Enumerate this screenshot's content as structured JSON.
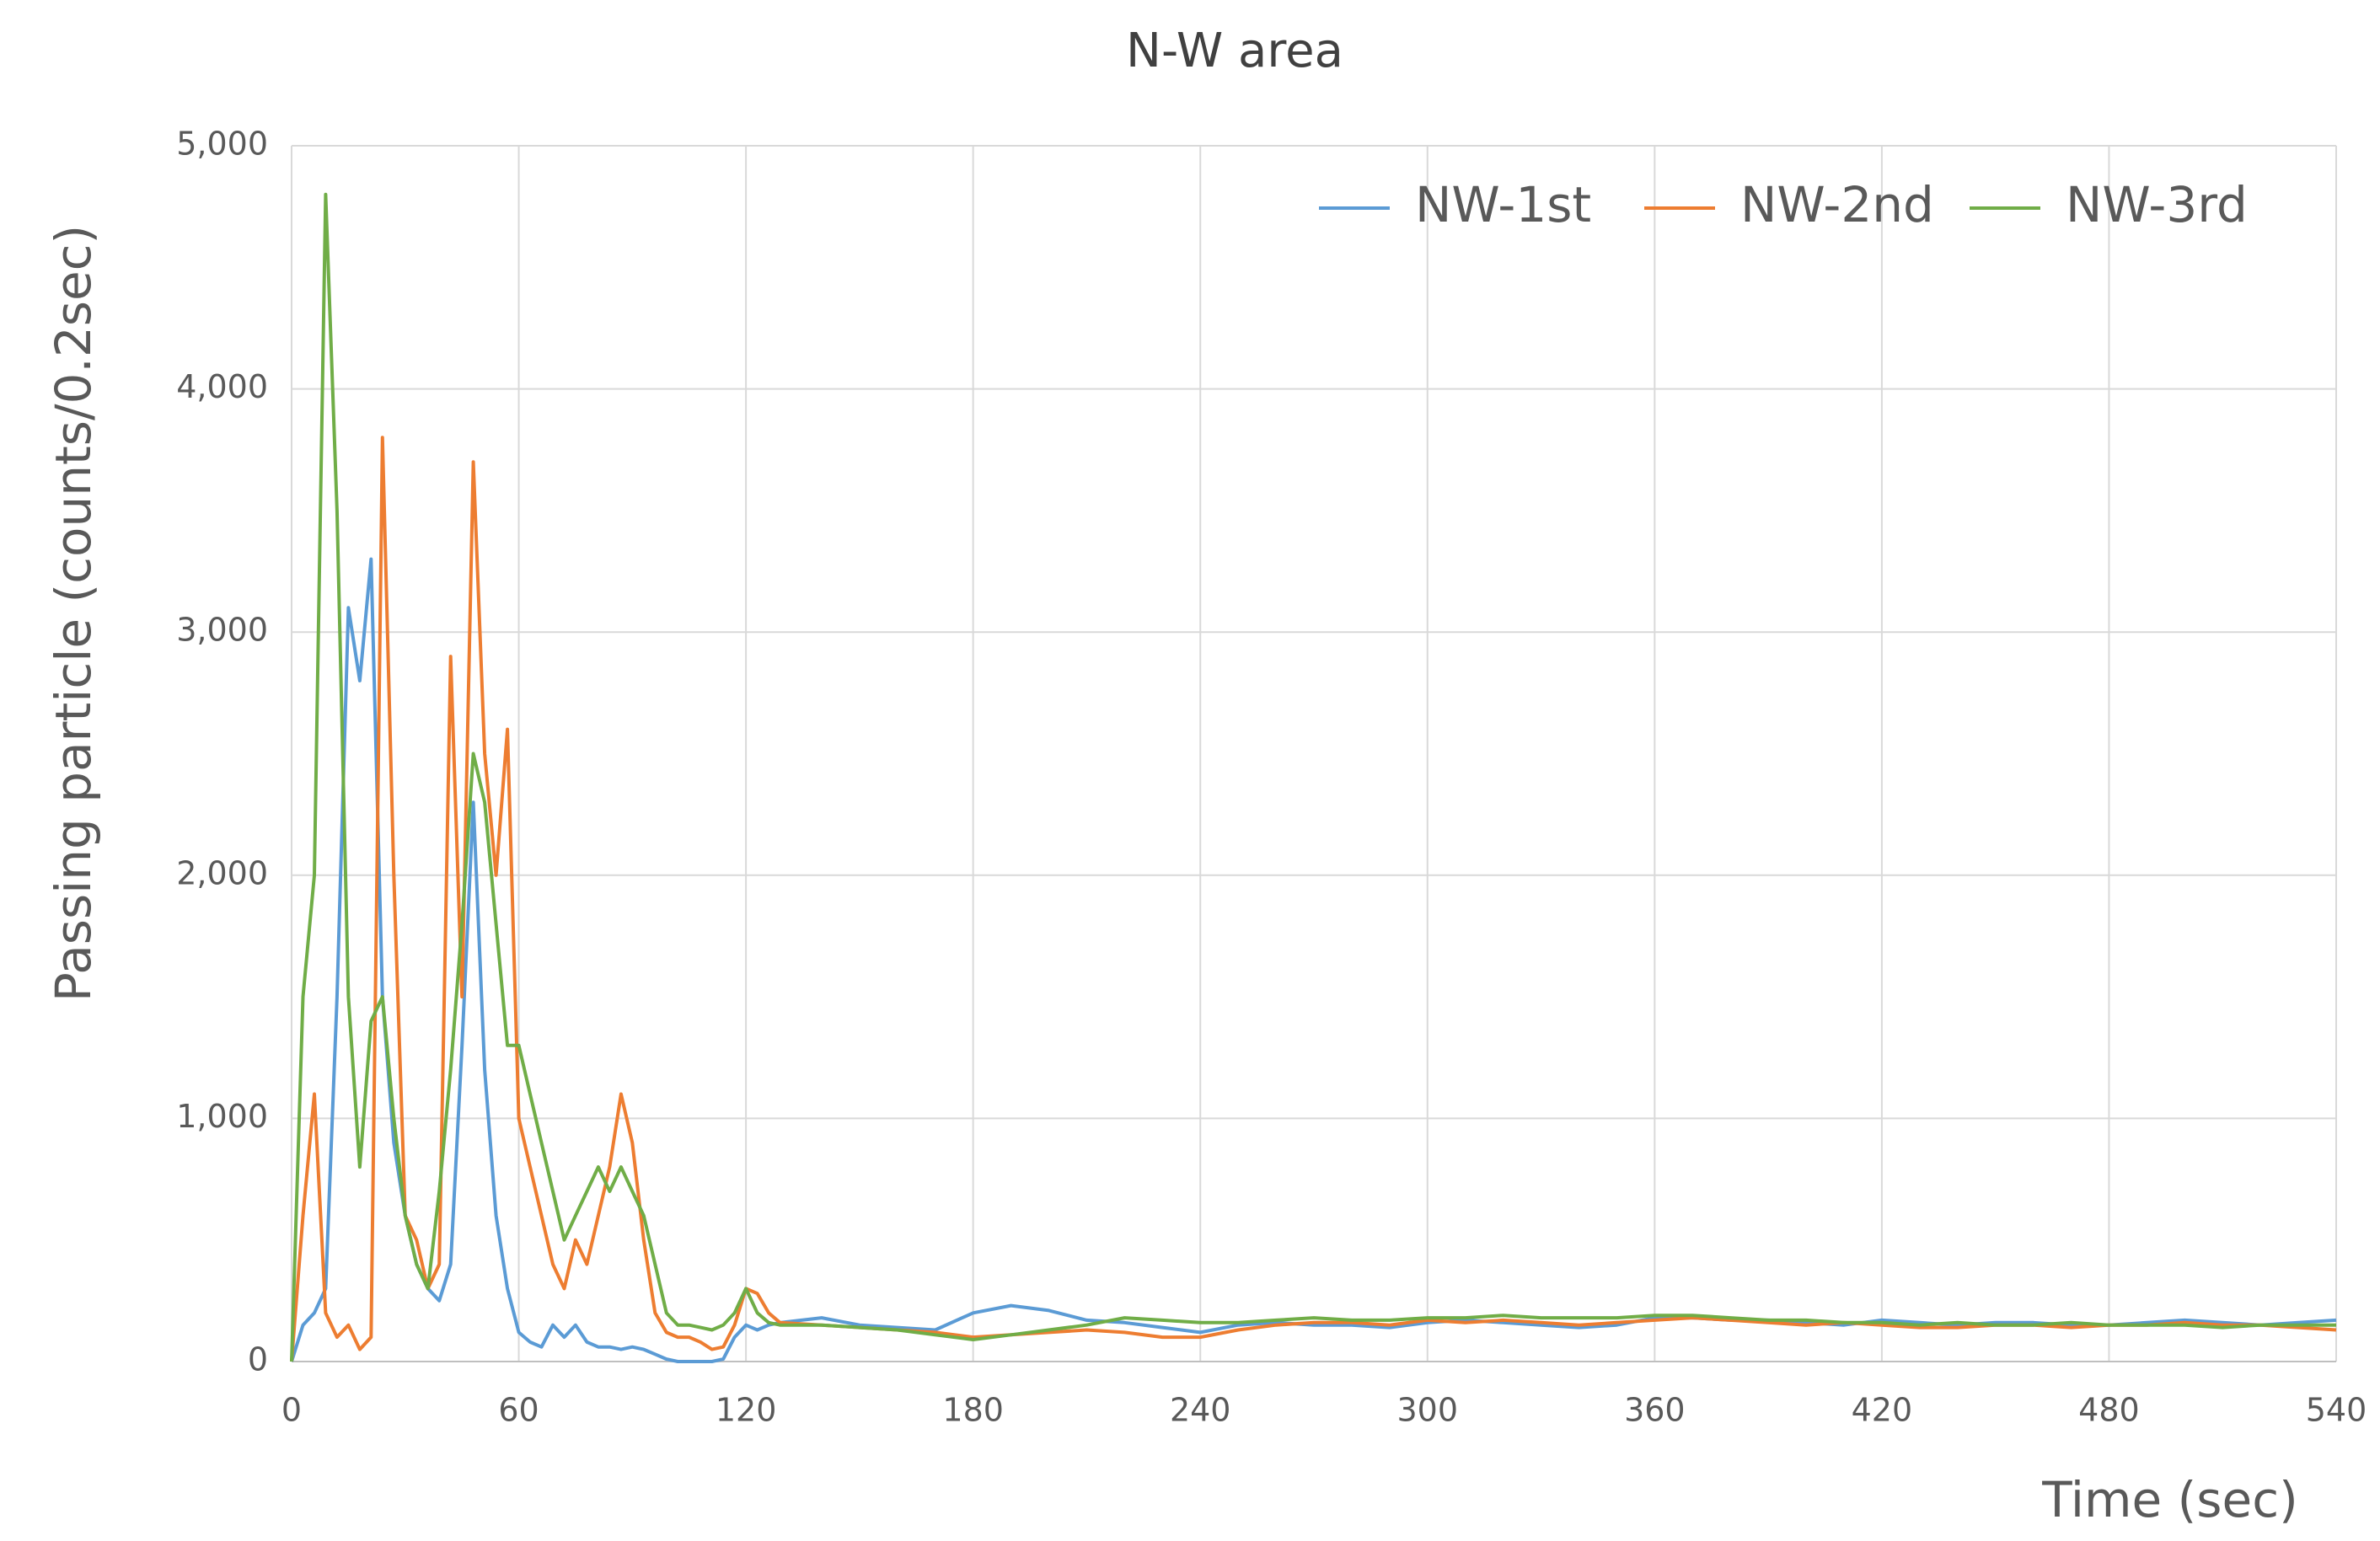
{
  "chart_data": {
    "type": "line",
    "title": "N-W area",
    "x_label": "Time (sec)",
    "y_label": "Passing particle (counts/0.2sec)",
    "x": [
      0,
      3,
      6,
      9,
      12,
      15,
      18,
      21,
      24,
      27,
      30,
      33,
      36,
      39,
      42,
      45,
      48,
      51,
      54,
      57,
      60,
      63,
      66,
      69,
      72,
      75,
      78,
      81,
      84,
      87,
      90,
      93,
      96,
      99,
      102,
      105,
      108,
      111,
      114,
      117,
      120,
      123,
      126,
      129,
      140,
      150,
      160,
      170,
      180,
      190,
      200,
      210,
      220,
      230,
      240,
      250,
      260,
      270,
      280,
      290,
      300,
      310,
      320,
      330,
      340,
      350,
      360,
      370,
      380,
      390,
      400,
      410,
      420,
      430,
      440,
      450,
      460,
      470,
      480,
      490,
      500,
      510,
      520,
      530,
      540
    ],
    "series": [
      {
        "name": "NW-1st",
        "color": "#5b9bd5",
        "values": [
          0,
          150,
          200,
          300,
          1500,
          3100,
          2800,
          3300,
          1500,
          900,
          600,
          400,
          300,
          250,
          400,
          1300,
          2300,
          1200,
          600,
          300,
          120,
          80,
          60,
          150,
          100,
          150,
          80,
          60,
          60,
          50,
          60,
          50,
          30,
          10,
          0,
          0,
          0,
          0,
          10,
          100,
          150,
          130,
          150,
          160,
          180,
          150,
          140,
          130,
          200,
          230,
          210,
          170,
          160,
          140,
          120,
          150,
          160,
          150,
          150,
          140,
          160,
          170,
          160,
          150,
          140,
          150,
          180,
          180,
          170,
          170,
          160,
          150,
          170,
          160,
          150,
          160,
          160,
          150,
          150,
          160,
          170,
          160,
          150,
          160,
          170
        ]
      },
      {
        "name": "NW-2nd",
        "color": "#ed7d31",
        "values": [
          0,
          600,
          1100,
          200,
          100,
          150,
          50,
          100,
          3800,
          2000,
          600,
          500,
          300,
          400,
          2900,
          1500,
          3700,
          2500,
          2000,
          2600,
          1000,
          800,
          600,
          400,
          300,
          500,
          400,
          600,
          800,
          1100,
          900,
          500,
          200,
          120,
          100,
          100,
          80,
          50,
          60,
          150,
          300,
          280,
          200,
          160,
          150,
          140,
          130,
          120,
          100,
          110,
          120,
          130,
          120,
          100,
          100,
          130,
          150,
          160,
          160,
          150,
          170,
          160,
          170,
          160,
          150,
          160,
          170,
          180,
          170,
          160,
          150,
          160,
          150,
          140,
          140,
          150,
          150,
          140,
          150,
          150,
          160,
          150,
          150,
          140,
          130
        ]
      },
      {
        "name": "NW-3rd",
        "color": "#70ad47",
        "values": [
          0,
          1500,
          2000,
          4800,
          3500,
          1500,
          800,
          1400,
          1500,
          1000,
          600,
          400,
          300,
          700,
          1200,
          1800,
          2500,
          2300,
          1800,
          1300,
          1300,
          1100,
          900,
          700,
          500,
          600,
          700,
          800,
          700,
          800,
          700,
          600,
          400,
          200,
          150,
          150,
          140,
          130,
          150,
          200,
          300,
          200,
          160,
          150,
          150,
          140,
          130,
          110,
          90,
          110,
          130,
          150,
          180,
          170,
          160,
          160,
          170,
          180,
          170,
          170,
          180,
          180,
          190,
          180,
          180,
          180,
          190,
          190,
          180,
          170,
          170,
          160,
          160,
          150,
          160,
          150,
          150,
          160,
          150,
          150,
          150,
          140,
          150,
          150,
          150
        ]
      }
    ],
    "xlim": [
      0,
      540
    ],
    "xticks": [
      0,
      60,
      120,
      180,
      240,
      300,
      360,
      420,
      480,
      540
    ],
    "ylim": [
      0,
      5000
    ],
    "yticks": [
      0,
      {
        "value": 1000,
        "label": "1,000"
      },
      {
        "value": 2000,
        "label": "2,000"
      },
      {
        "value": 3000,
        "label": "3,000"
      },
      {
        "value": 4000,
        "label": "4,000"
      },
      {
        "value": 5000,
        "label": "5,000"
      }
    ],
    "grid": true,
    "legend": "top-right"
  }
}
